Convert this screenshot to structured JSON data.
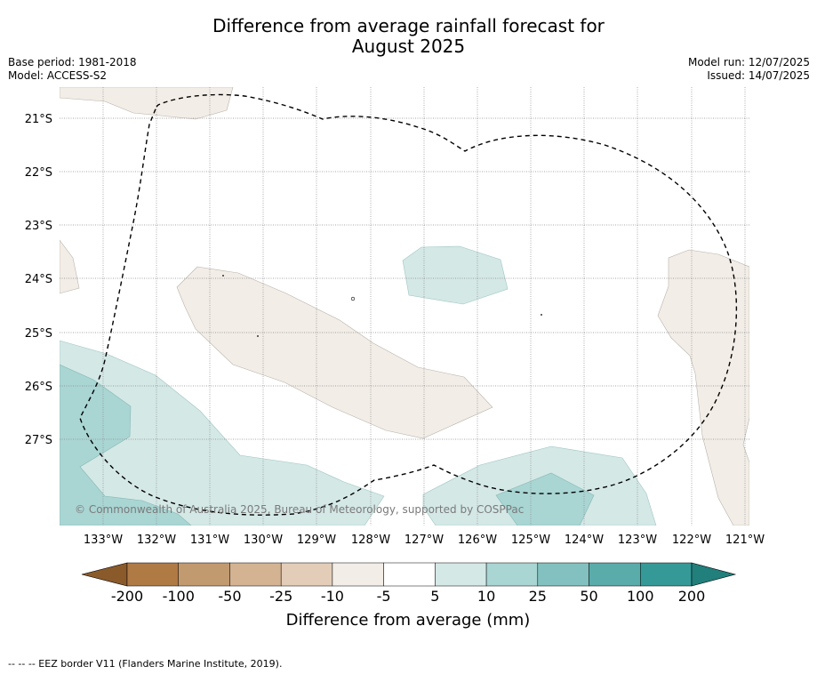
{
  "title_line1": "Difference from average rainfall forecast for",
  "title_line2": "August 2025",
  "base_period": "Base period: 1981-2018",
  "model": "Model: ACCESS-S2",
  "model_run": "Model run: 12/07/2025",
  "issued": "Issued: 14/07/2025",
  "copyright": "© Commonwealth of Australia 2025, Bureau of Meteorology, supported by COSPPac",
  "footer": "-- -- -- EEZ border V11 (Flanders Marine Institute, 2019).",
  "lat_labels": [
    "21°S",
    "22°S",
    "23°S",
    "24°S",
    "25°S",
    "26°S",
    "27°S"
  ],
  "lon_labels": [
    "133°W",
    "132°W",
    "131°W",
    "130°W",
    "129°W",
    "128°W",
    "127°W",
    "126°W",
    "125°W",
    "124°W",
    "123°W",
    "122°W",
    "121°W"
  ],
  "colorbar": {
    "label": "Difference from average (mm)",
    "ticks": [
      "-200",
      "-100",
      "-50",
      "-25",
      "-10",
      "-5",
      "5",
      "10",
      "25",
      "50",
      "100",
      "200"
    ],
    "colors": [
      "#8b5a2b",
      "#b07a45",
      "#c29a70",
      "#d4b392",
      "#e3cdb8",
      "#f2ede6",
      "#ffffff",
      "#d4e8e6",
      "#a9d5d3",
      "#82c1bf",
      "#5aacab",
      "#359a97",
      "#217f7c"
    ]
  }
}
